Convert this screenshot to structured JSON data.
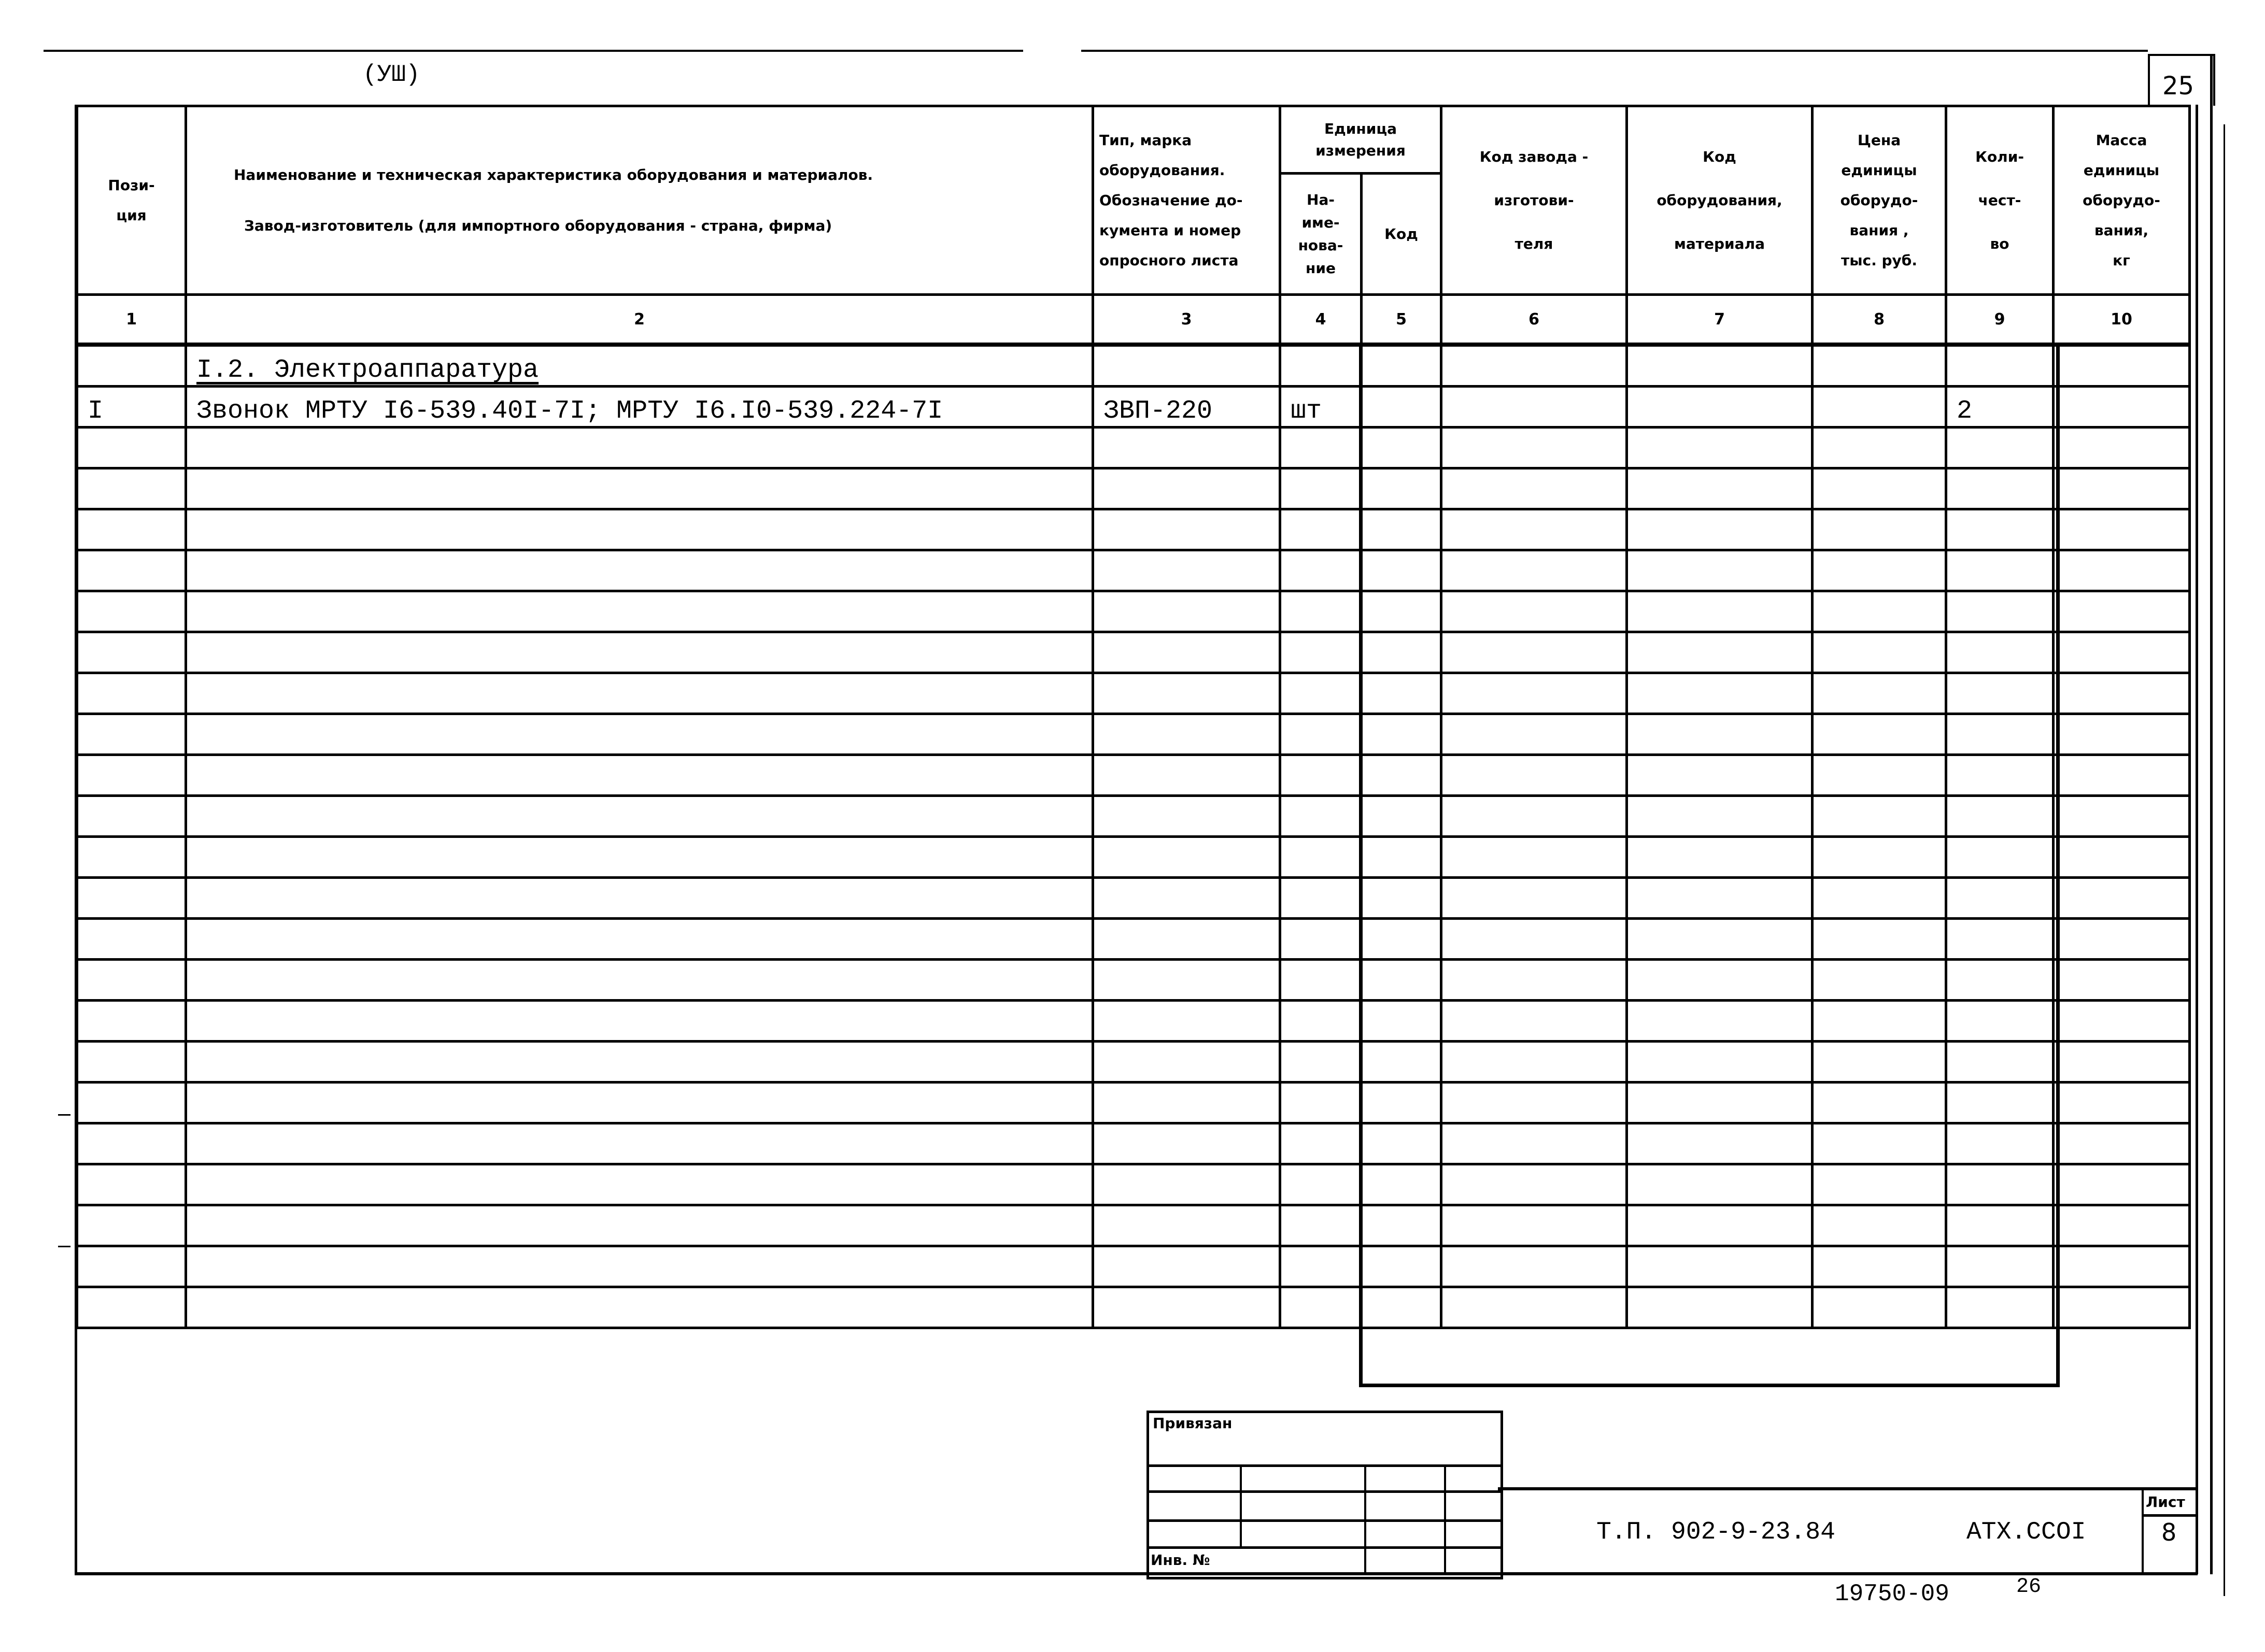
{
  "page_number": "25",
  "roman_mark": "(УШ)",
  "header": {
    "col1": "Пози-\nция",
    "col2_line1": "Наименование и техническая характеристика  оборудования и материалов.",
    "col2_line2": "Завод-изготовитель  (для импортного оборудования -  страна, фирма)",
    "col3": "Тип,      марка\nоборудования.\nОбозначение до-\nкумента и номер\nопросного листа",
    "col45_group": "Единица\nизмерения",
    "col4": "На-\nиме-\nнова-\nние",
    "col5": "Код",
    "col6": "Код  завода -\nизготови-\nтеля",
    "col7": "Код\nоборудования,\nматериала",
    "col8": "Цена\nединицы\nоборудо-\nвания ,\nтыс. руб.",
    "col9": "Коли-\nчест-\nво",
    "col10": "Масса\nединицы\nоборудо-\nвания,\nкг"
  },
  "column_numbers": [
    "1",
    "2",
    "3",
    "4",
    "5",
    "6",
    "7",
    "8",
    "9",
    "10"
  ],
  "rows": [
    {
      "pos": "",
      "name": "I.2. Электроаппаратура",
      "type": "",
      "unit": "",
      "code": "",
      "factory": "",
      "equip_code": "",
      "price": "",
      "qty": "",
      "mass": "",
      "section": true
    },
    {
      "pos": "I",
      "name": "Звонок МРТУ I6-539.40I-7I; МРТУ I6.I0-539.224-7I",
      "type": "ЗВП-220",
      "unit": "шт",
      "code": "",
      "factory": "",
      "equip_code": "",
      "price": "",
      "qty": "2",
      "mass": ""
    }
  ],
  "stamp": {
    "linked_label": "Привязан",
    "inv_label": "Инв. №"
  },
  "title_block": {
    "doc_number": "Т.П. 902-9-23.84",
    "code": "АТХ.ССОI",
    "sheet_label": "Лист",
    "sheet_value": "8"
  },
  "footer": {
    "archive_number": "19750-09",
    "archive_page": "26"
  }
}
